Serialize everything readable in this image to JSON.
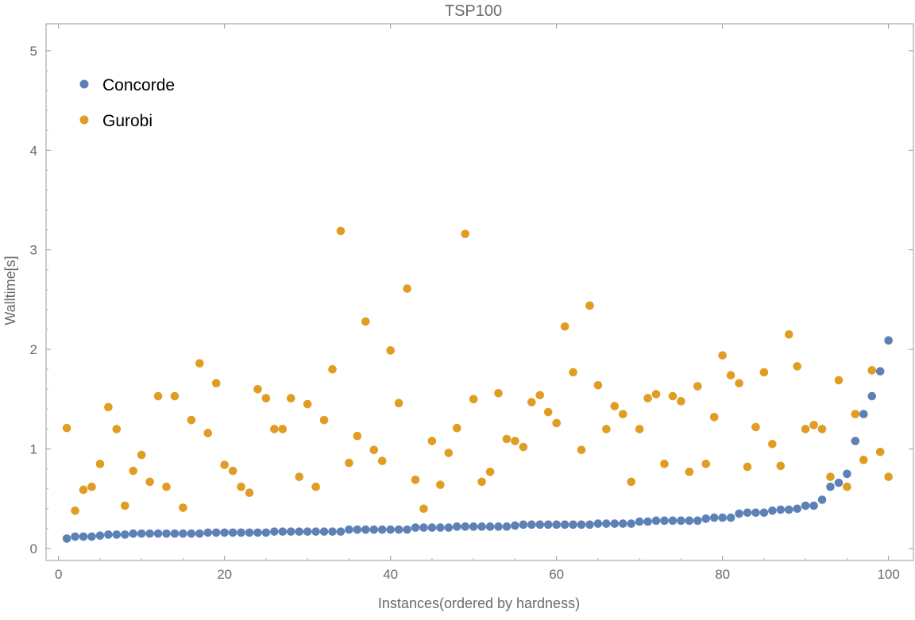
{
  "chart_data": {
    "type": "scatter",
    "title": "TSP100",
    "xlabel": "Instances(ordered by hardness)",
    "ylabel": "Walltime[s]",
    "xlim": [
      -1.5,
      103
    ],
    "ylim": [
      -0.12,
      5.27
    ],
    "xticks": [
      0,
      20,
      40,
      60,
      80,
      100
    ],
    "yticks": [
      0,
      1,
      2,
      3,
      4,
      5
    ],
    "grid": false,
    "legend_position": "top-left",
    "x": [
      1,
      2,
      3,
      4,
      5,
      6,
      7,
      8,
      9,
      10,
      11,
      12,
      13,
      14,
      15,
      16,
      17,
      18,
      19,
      20,
      21,
      22,
      23,
      24,
      25,
      26,
      27,
      28,
      29,
      30,
      31,
      32,
      33,
      34,
      35,
      36,
      37,
      38,
      39,
      40,
      41,
      42,
      43,
      44,
      45,
      46,
      47,
      48,
      49,
      50,
      51,
      52,
      53,
      54,
      55,
      56,
      57,
      58,
      59,
      60,
      61,
      62,
      63,
      64,
      65,
      66,
      67,
      68,
      69,
      70,
      71,
      72,
      73,
      74,
      75,
      76,
      77,
      78,
      79,
      80,
      81,
      82,
      83,
      84,
      85,
      86,
      87,
      88,
      89,
      90,
      91,
      92,
      93,
      94,
      95,
      96,
      97,
      98,
      99,
      100
    ],
    "series": [
      {
        "name": "Concorde",
        "color": "#5e81b5",
        "values": [
          0.1,
          0.12,
          0.12,
          0.12,
          0.13,
          0.14,
          0.14,
          0.14,
          0.15,
          0.15,
          0.15,
          0.15,
          0.15,
          0.15,
          0.15,
          0.15,
          0.15,
          0.16,
          0.16,
          0.16,
          0.16,
          0.16,
          0.16,
          0.16,
          0.16,
          0.17,
          0.17,
          0.17,
          0.17,
          0.17,
          0.17,
          0.17,
          0.17,
          0.17,
          0.19,
          0.19,
          0.19,
          0.19,
          0.19,
          0.19,
          0.19,
          0.19,
          0.21,
          0.21,
          0.21,
          0.21,
          0.21,
          0.22,
          0.22,
          0.22,
          0.22,
          0.22,
          0.22,
          0.22,
          0.23,
          0.24,
          0.24,
          0.24,
          0.24,
          0.24,
          0.24,
          0.24,
          0.24,
          0.24,
          0.25,
          0.25,
          0.25,
          0.25,
          0.25,
          0.27,
          0.27,
          0.28,
          0.28,
          0.28,
          0.28,
          0.28,
          0.28,
          0.3,
          0.31,
          0.31,
          0.31,
          0.35,
          0.36,
          0.36,
          0.36,
          0.38,
          0.39,
          0.39,
          0.4,
          0.43,
          0.43,
          0.49,
          0.62,
          0.66,
          0.75,
          1.08,
          1.35,
          1.53,
          1.78,
          2.09
        ]
      },
      {
        "name": "Gurobi",
        "color": "#e19c24",
        "values": [
          1.21,
          0.38,
          0.59,
          0.62,
          0.85,
          1.42,
          1.2,
          0.43,
          0.78,
          0.94,
          0.67,
          1.53,
          0.62,
          1.53,
          0.41,
          1.29,
          1.86,
          1.16,
          1.66,
          0.84,
          0.78,
          0.62,
          0.56,
          1.6,
          1.51,
          1.2,
          1.2,
          1.51,
          0.72,
          1.45,
          0.62,
          1.29,
          1.8,
          3.19,
          0.86,
          1.13,
          2.28,
          0.99,
          0.88,
          1.99,
          1.46,
          2.61,
          0.69,
          0.4,
          1.08,
          0.64,
          0.96,
          1.21,
          3.16,
          1.5,
          0.67,
          0.77,
          1.56,
          1.1,
          1.08,
          1.02,
          1.47,
          1.54,
          1.37,
          1.26,
          2.23,
          1.77,
          0.99,
          2.44,
          1.64,
          1.2,
          1.43,
          1.35,
          0.67,
          1.2,
          1.51,
          1.55,
          0.85,
          1.53,
          1.48,
          0.77,
          1.63,
          0.85,
          1.32,
          1.94,
          1.74,
          1.66,
          0.82,
          1.22,
          1.77,
          1.05,
          0.83,
          2.15,
          1.83,
          1.2,
          1.24,
          1.2,
          0.72,
          1.69,
          0.62,
          1.35,
          0.89,
          1.79,
          0.97,
          0.72
        ]
      }
    ]
  }
}
